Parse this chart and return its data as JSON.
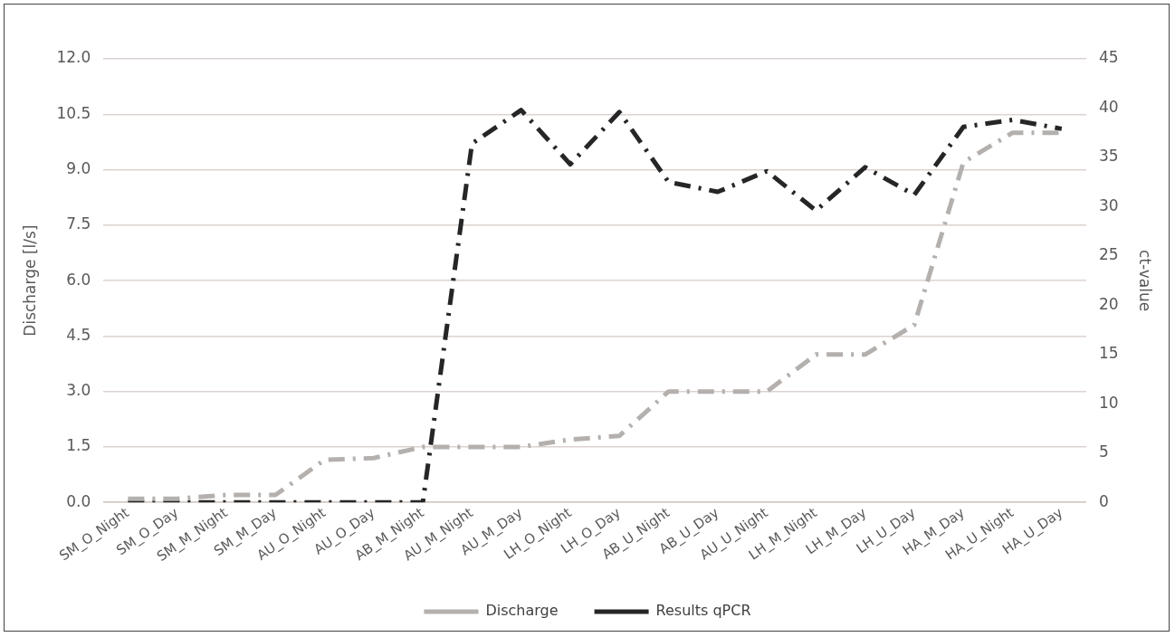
{
  "chart_data": {
    "type": "line",
    "xlabel": null,
    "ylabel": "Discharge [l/s]",
    "y2label": "ct-value",
    "categories": [
      "SM_O_Night",
      "SM_O_Day",
      "SM_M_Night",
      "SM_M_Day",
      "AU_O_Night",
      "AU_O_Day",
      "AB_M_Night",
      "AU_M_Night",
      "AU_M_Day",
      "LH_O_Night",
      "LH_O_Day",
      "AB_U_Night",
      "AB_U_Day",
      "AU_U_Night",
      "LH_M_Night",
      "LH_M_Day",
      "LH_U_Day",
      "HA_M_Day",
      "HA_U_Night",
      "HA_U_Day"
    ],
    "series": [
      {
        "name": "Discharge",
        "color": "#b4b0ae",
        "line_style": "dashed",
        "values": [
          0.1,
          0.1,
          0.2,
          0.2,
          1.15,
          1.2,
          1.5,
          1.5,
          1.5,
          1.7,
          1.8,
          3.0,
          3.0,
          3.0,
          4.0,
          4.0,
          4.8,
          9.2,
          10.0,
          10.0
        ]
      },
      {
        "name": "Results qPCR",
        "color": "#262626",
        "axis": "y2",
        "line_style": "dashed",
        "values": [
          0,
          0,
          0,
          0,
          0,
          0,
          0,
          36.4,
          39.8,
          34.3,
          39.6,
          32.5,
          31.5,
          33.6,
          29.6,
          34.0,
          31.2,
          38.1,
          38.8,
          37.9
        ]
      }
    ],
    "ylim": [
      0,
      12
    ],
    "yticks": [
      {
        "value": 0,
        "label": "0.0"
      },
      {
        "value": 1.5,
        "label": "1.5"
      },
      {
        "value": 3,
        "label": "3.0"
      },
      {
        "value": 4.5,
        "label": "4.5"
      },
      {
        "value": 6,
        "label": "6.0"
      },
      {
        "value": 7.5,
        "label": "7.5"
      },
      {
        "value": 9,
        "label": "9.0"
      },
      {
        "value": 10.5,
        "label": "10.5"
      },
      {
        "value": 12,
        "label": "12.0"
      }
    ],
    "y2lim": [
      0,
      45
    ],
    "y2ticks": [
      0,
      5,
      10,
      15,
      20,
      25,
      30,
      35,
      40,
      45
    ],
    "grid": "y",
    "legend": "bottom",
    "marker": "none"
  }
}
